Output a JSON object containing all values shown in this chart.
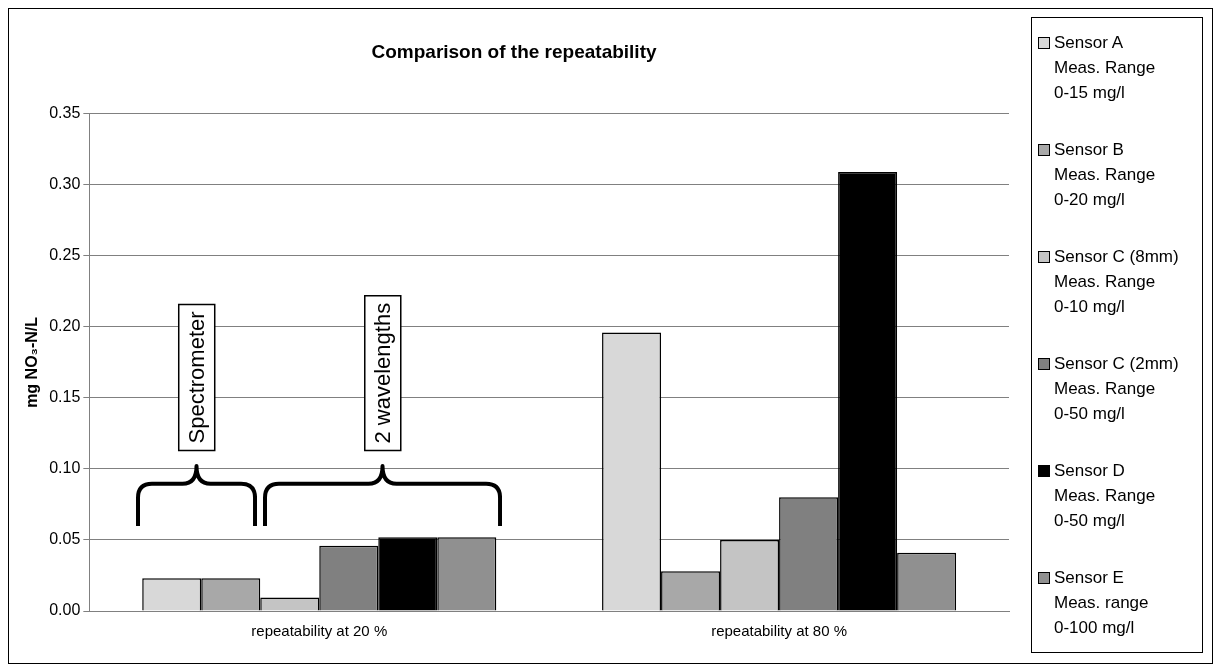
{
  "chart_data": {
    "type": "bar",
    "title": "Comparison of the repeatability",
    "ylabel": "mg NO₃-N/L",
    "categories": [
      "repeatability at 20 %",
      "repeatability at 80 %"
    ],
    "series": [
      {
        "name": "Sensor A\nMeas. Range\n0-15 mg/l",
        "color": "#d8d8d8",
        "values": [
          0.023,
          0.196
        ]
      },
      {
        "name": "Sensor B\nMeas. Range\n0-20 mg/l",
        "color": "#a8a8a8",
        "values": [
          0.023,
          0.028
        ]
      },
      {
        "name": "Sensor C (8mm)\nMeas. Range\n0-10 mg/l",
        "color": "#c4c4c4",
        "values": [
          0.0095,
          0.05
        ]
      },
      {
        "name": "Sensor C (2mm)\nMeas. Range\n0-50 mg/l",
        "color": "#808080",
        "values": [
          0.046,
          0.08
        ]
      },
      {
        "name": "Sensor D\nMeas. Range\n0-50 mg/l",
        "color": "#000000",
        "values": [
          0.052,
          0.309
        ]
      },
      {
        "name": "Sensor E\nMeas. range\n0-100 mg/l",
        "color": "#909090",
        "values": [
          0.052,
          0.041
        ]
      }
    ],
    "ylim": [
      0,
      0.35
    ],
    "yticks": [
      {
        "value": 0,
        "label": "0.00"
      },
      {
        "value": 0.05,
        "label": "0.05"
      },
      {
        "value": 0.1,
        "label": "0.10"
      },
      {
        "value": 0.15,
        "label": "0.15"
      },
      {
        "value": 0.2,
        "label": "0.20"
      },
      {
        "value": 0.25,
        "label": "0.25"
      },
      {
        "value": 0.3,
        "label": "0.30"
      },
      {
        "value": 0.35,
        "label": "0.35"
      }
    ],
    "grid": "y",
    "legend": "right",
    "annotations": [
      "Spectrometer",
      "2 wavelengths"
    ]
  }
}
